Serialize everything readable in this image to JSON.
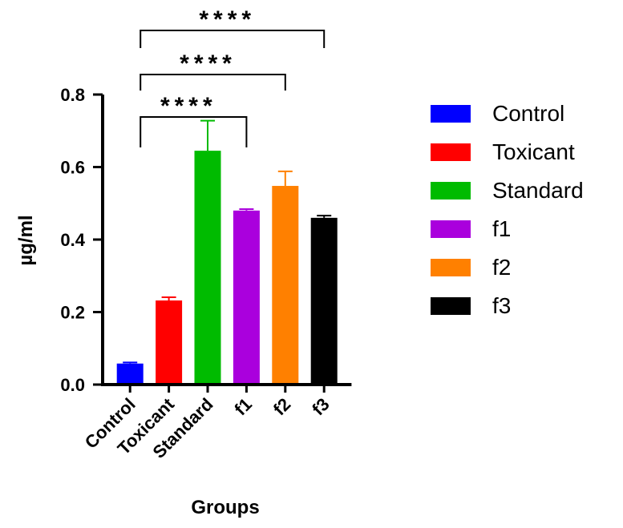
{
  "chart_data": {
    "type": "bar",
    "title": "",
    "xlabel": "Groups",
    "ylabel": "µg/ml",
    "ylim": [
      0,
      0.8
    ],
    "yticks": [
      "0.0",
      "0.2",
      "0.4",
      "0.6",
      "0.8"
    ],
    "categories": [
      "Control",
      "Toxicant",
      "Standard",
      "f1",
      "f2",
      "f3"
    ],
    "values": [
      0.058,
      0.232,
      0.645,
      0.48,
      0.548,
      0.46
    ],
    "error": [
      0.003,
      0.009,
      0.083,
      0.004,
      0.04,
      0.006
    ],
    "colors": [
      "#0000ff",
      "#ff0000",
      "#00bb00",
      "#aa00dd",
      "#ff8000",
      "#000000"
    ],
    "legend_position": "right",
    "legend": [
      "Control",
      "Toxicant",
      "Standard",
      "f1",
      "f2",
      "f3"
    ],
    "significance": [
      {
        "from": "Control",
        "to": "f1",
        "label": "****"
      },
      {
        "from": "Control",
        "to": "f2",
        "label": "****"
      },
      {
        "from": "Control",
        "to": "f3",
        "label": "****"
      }
    ]
  }
}
